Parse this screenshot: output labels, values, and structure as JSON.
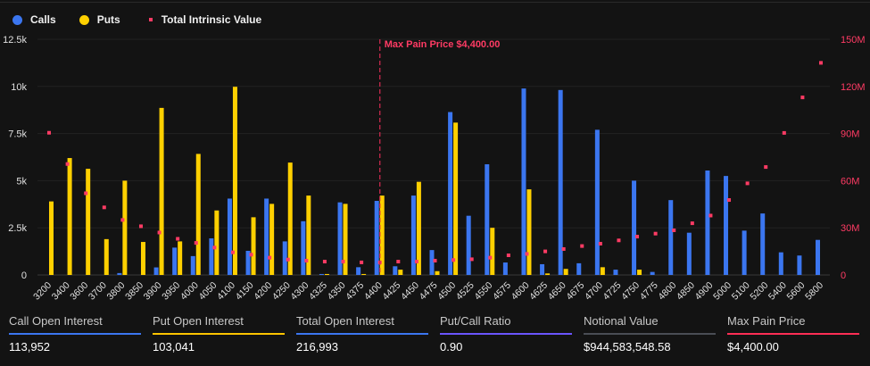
{
  "legend": {
    "calls": "Calls",
    "puts": "Puts",
    "tiv": "Total Intrinsic Value"
  },
  "colors": {
    "calls": "#3b76f0",
    "puts": "#ffd000",
    "tiv": "#ff3b64",
    "ratio": "#6a55ff",
    "notional": "#4a4d55"
  },
  "chart_data": {
    "type": "bar",
    "categories": [
      "3200",
      "3400",
      "3600",
      "3700",
      "3800",
      "3850",
      "3900",
      "3950",
      "4000",
      "4050",
      "4100",
      "4150",
      "4200",
      "4250",
      "4300",
      "4325",
      "4350",
      "4375",
      "4400",
      "4425",
      "4450",
      "4475",
      "4500",
      "4525",
      "4550",
      "4575",
      "4600",
      "4625",
      "4650",
      "4675",
      "4700",
      "4725",
      "4750",
      "4775",
      "4800",
      "4850",
      "4900",
      "5000",
      "5100",
      "5200",
      "5400",
      "5600",
      "5800"
    ],
    "series": [
      {
        "name": "Calls",
        "axis": "left",
        "values": [
          0,
          0,
          0,
          0,
          100,
          0,
          400,
          1450,
          1000,
          1940,
          4050,
          1280,
          4050,
          1780,
          2850,
          50,
          3850,
          410,
          3930,
          460,
          4210,
          1320,
          8640,
          3140,
          5870,
          660,
          9890,
          570,
          9810,
          620,
          7700,
          280,
          5000,
          160,
          3970,
          2240,
          5540,
          5250,
          2350,
          3260,
          1200,
          1030,
          1860
        ]
      },
      {
        "name": "Puts",
        "axis": "left",
        "values": [
          3900,
          6200,
          5630,
          1900,
          5000,
          1750,
          8860,
          1780,
          6420,
          3420,
          9980,
          3060,
          3770,
          5960,
          4210,
          50,
          3770,
          50,
          4210,
          280,
          4940,
          200,
          8080,
          0,
          2500,
          0,
          4540,
          80,
          320,
          0,
          410,
          0,
          280,
          0,
          0,
          0,
          0,
          0,
          0,
          0,
          0,
          0,
          0
        ]
      },
      {
        "name": "Total Intrinsic Value",
        "axis": "right",
        "type": "scatter",
        "values": [
          90.5,
          70.6,
          52,
          43,
          35,
          31,
          27,
          23,
          20.4,
          17.4,
          14.4,
          12.9,
          11,
          9.8,
          9.1,
          8.5,
          8.5,
          8,
          8,
          8.5,
          8.5,
          9.1,
          9.5,
          10,
          11,
          12.5,
          13.4,
          15,
          16.5,
          18.4,
          19.9,
          22,
          24.4,
          26.3,
          28.4,
          32.9,
          37.8,
          47.7,
          58.3,
          68.7,
          90.4,
          113,
          135
        ]
      }
    ],
    "left_axis": {
      "range": [
        0,
        12500
      ],
      "ticks": [
        "0",
        "2.5k",
        "5k",
        "7.5k",
        "10k",
        "12.5k"
      ]
    },
    "right_axis": {
      "range": [
        0,
        150
      ],
      "unit": "M",
      "ticks": [
        "0",
        "30M",
        "60M",
        "90M",
        "120M",
        "150M"
      ]
    },
    "annotation": {
      "category": "4400",
      "label": "Max Pain Price $4,400.00"
    },
    "grid": true,
    "legend_position": "top-left"
  },
  "stats": [
    {
      "label": "Call Open Interest",
      "value": "113,952",
      "color": "#3b76f0"
    },
    {
      "label": "Put Open Interest",
      "value": "103,041",
      "color": "#ffc400"
    },
    {
      "label": "Total Open Interest",
      "value": "216,993",
      "color": "#3b76f0"
    },
    {
      "label": "Put/Call Ratio",
      "value": "0.90",
      "color": "#6a55ff"
    },
    {
      "label": "Notional Value",
      "value": "$944,583,548.58",
      "color": "#4a4d55"
    },
    {
      "label": "Max Pain Price",
      "value": "$4,400.00",
      "color": "#ff2d55"
    }
  ]
}
